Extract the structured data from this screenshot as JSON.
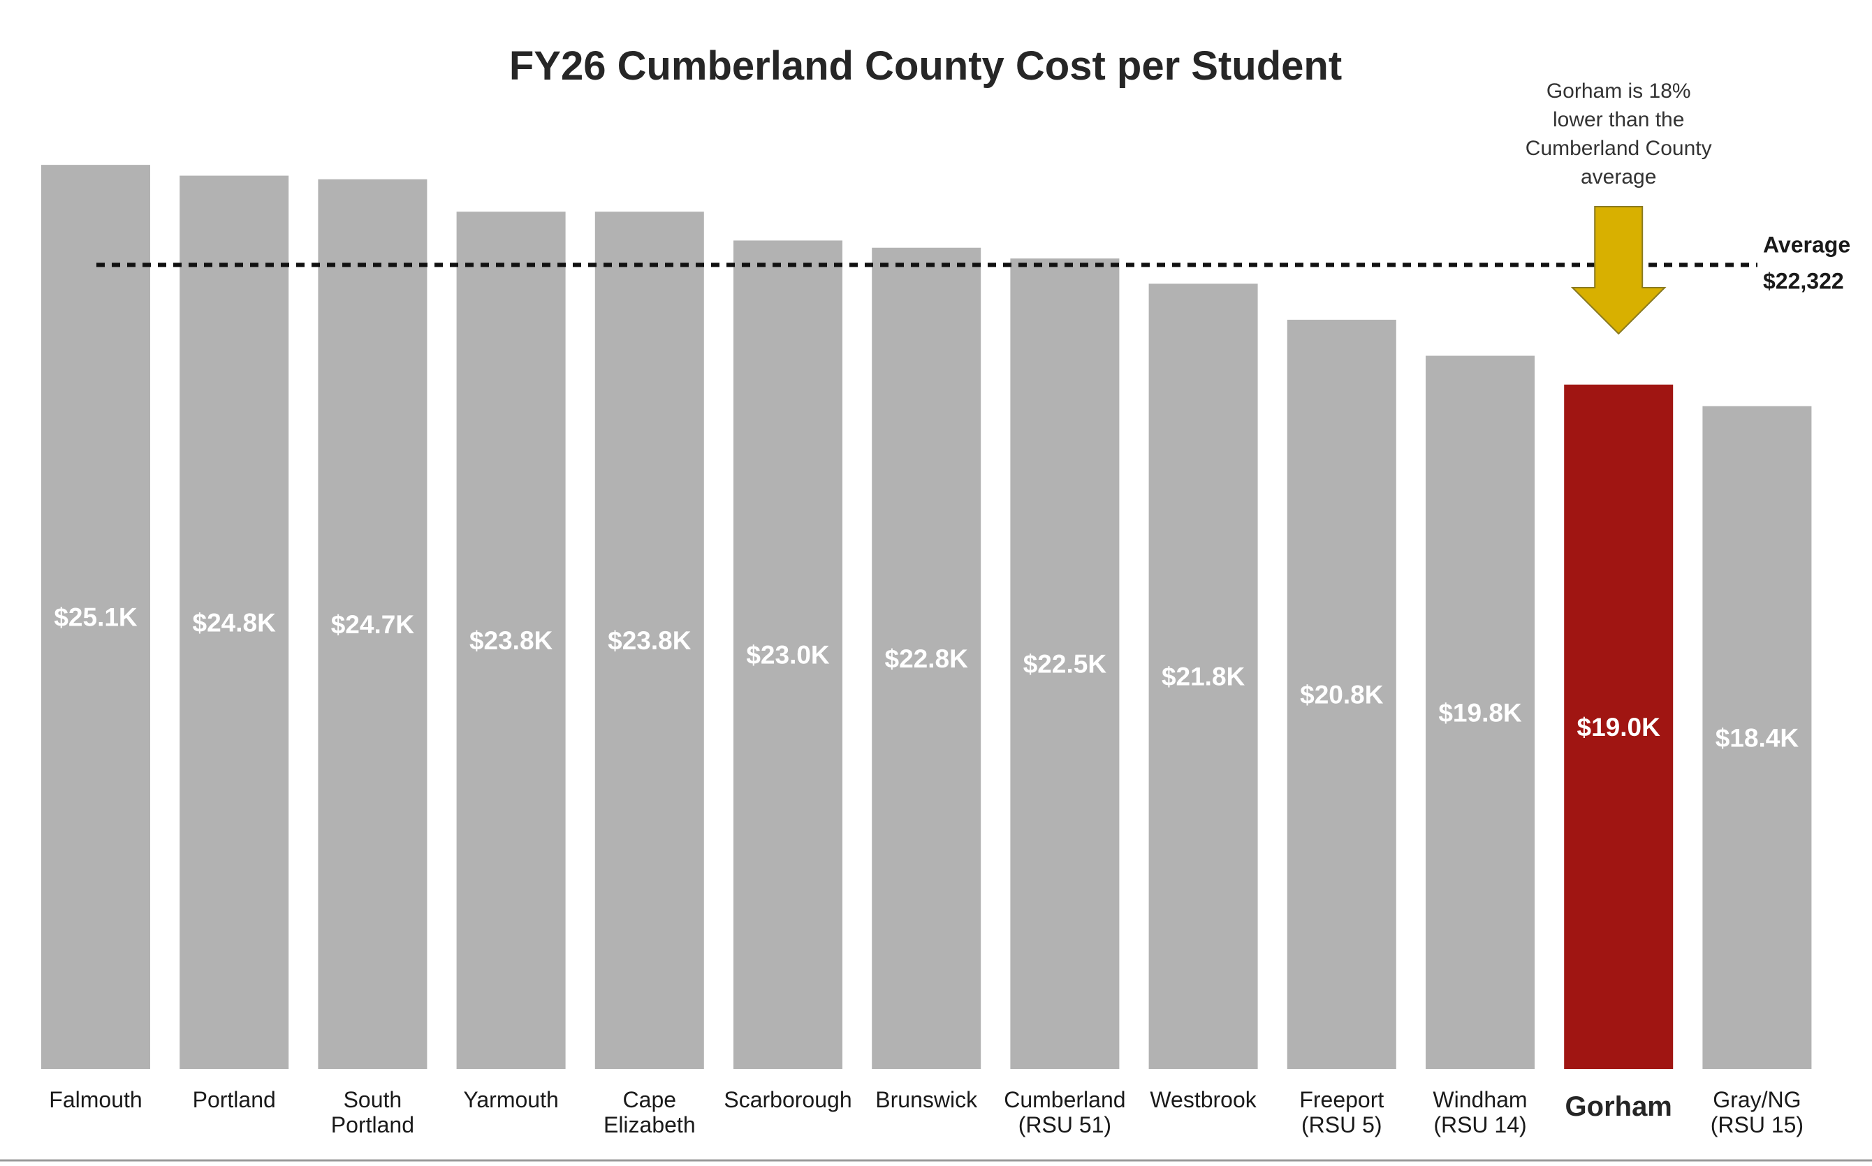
{
  "chart_data": {
    "type": "bar",
    "title": "FY26 Cumberland County Cost per Student",
    "xlabel": "",
    "ylabel": "",
    "ylim": [
      0,
      25800
    ],
    "grid": false,
    "categories": [
      [
        "Falmouth"
      ],
      [
        "Portland"
      ],
      [
        "South",
        "Portland"
      ],
      [
        "Yarmouth"
      ],
      [
        "Cape",
        "Elizabeth"
      ],
      [
        "Scarborough"
      ],
      [
        "Brunswick"
      ],
      [
        "Cumberland",
        "(RSU 51)"
      ],
      [
        "Westbrook"
      ],
      [
        "Freeport",
        "(RSU 5)"
      ],
      [
        "Windham",
        "(RSU 14)"
      ],
      [
        "Gorham"
      ],
      [
        "Gray/NG",
        "(RSU 15)"
      ]
    ],
    "values": [
      25100,
      24800,
      24700,
      23800,
      23800,
      23000,
      22800,
      22500,
      21800,
      20800,
      19800,
      19000,
      18400
    ],
    "data_labels": [
      "$25.1K",
      "$24.8K",
      "$24.7K",
      "$23.8K",
      "$23.8K",
      "$23.0K",
      "$22.8K",
      "$22.5K",
      "$21.8K",
      "$20.8K",
      "$19.8K",
      "$19.0K",
      "$18.4K"
    ],
    "highlight_category": "Gorham",
    "colors": {
      "bar": "#b2b2b2",
      "highlight": "#a01512",
      "arrow": "#d8b000",
      "average_line": "#111111"
    },
    "reference_line": {
      "value": 22322,
      "label_lines": [
        "Average",
        "$22,322"
      ]
    },
    "annotation": {
      "lines": [
        "Gorham is 18%",
        "lower than the",
        "Cumberland County",
        "average"
      ],
      "points_to": "Gorham"
    }
  }
}
